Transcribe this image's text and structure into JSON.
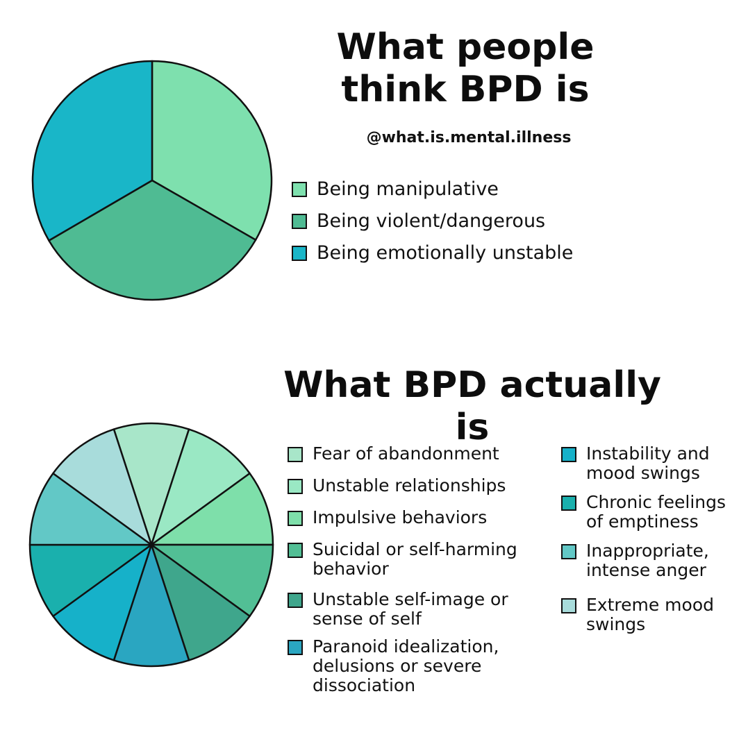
{
  "chart_data": [
    {
      "type": "pie",
      "title": "What people think BPD is",
      "subtitle": "@what.is.mental.illness",
      "legend": "right",
      "start_angle_deg": 0,
      "slices": [
        {
          "label": "Being manipulative",
          "value": 33.3,
          "color": "#7ee0ae"
        },
        {
          "label": "Being violent/dangerous",
          "value": 33.3,
          "color": "#4fbb93"
        },
        {
          "label": "Being emotionally unstable",
          "value": 33.4,
          "color": "#19b6c8"
        }
      ]
    },
    {
      "type": "pie",
      "title": "What BPD actually is",
      "legend": "right",
      "start_angle_deg": -18,
      "slices": [
        {
          "label": "Fear of abandonment",
          "value": 10,
          "color": "#a8e6c9"
        },
        {
          "label": "Unstable relationships",
          "value": 10,
          "color": "#9ae8c4"
        },
        {
          "label": "Impulsive behaviors",
          "value": 10,
          "color": "#7edfaa"
        },
        {
          "label": "Suicidal or self-harming behavior",
          "value": 10,
          "color": "#52bf95"
        },
        {
          "label": "Unstable self-image or sense of self",
          "value": 10,
          "color": "#3fa68c"
        },
        {
          "label": "Paranoid idealization, delusions or severe dissociation",
          "value": 10,
          "color": "#2aa6c1"
        },
        {
          "label": "Instability and mood swings",
          "value": 10,
          "color": "#16b1c9"
        },
        {
          "label": "Chronic feelings of emptiness",
          "value": 10,
          "color": "#1ab0ad"
        },
        {
          "label": "Inappropriate, intense anger",
          "value": 10,
          "color": "#62c8c6"
        },
        {
          "label": "Extreme mood swings",
          "value": 10,
          "color": "#a8dcdb"
        }
      ]
    }
  ]
}
